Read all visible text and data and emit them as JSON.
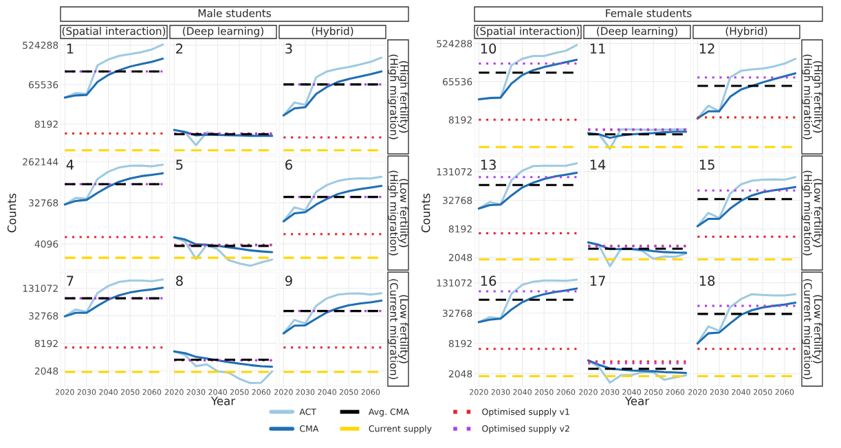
{
  "chart_data": [
    {
      "type": "line",
      "subtitle": "(Spatial interaction)",
      "legend": "bottom",
      "annotations": [
        "1"
      ],
      "x": [
        2020,
        2025,
        2030,
        2035,
        2040,
        2045,
        2050,
        2055,
        2060,
        2065
      ],
      "xlim": [
        2018,
        2067
      ],
      "xticks": [
        2020,
        2030,
        2040,
        2050,
        2060
      ],
      "log": "y",
      "ylim": [
        1700,
        690000
      ],
      "yticks": [
        8192,
        65536,
        524288
      ],
      "grid": true,
      "tick_labels": "y",
      "series": [
        {
          "name": "ACT",
          "color": "#9ecae1",
          "values": [
            33000,
            42000,
            40000,
            180000,
            246000,
            297000,
            325000,
            360000,
            417000,
            538000
          ]
        },
        {
          "name": "CMA",
          "color": "#1f6fb4",
          "values": [
            33000,
            37000,
            38000,
            75000,
            109000,
            140000,
            169000,
            192000,
            217000,
            256000
          ]
        }
      ],
      "ref_lines": [
        {
          "axis": "y",
          "value": 131000,
          "label": "Avg. CMA",
          "color": "#000000",
          "line_style": "dashed"
        },
        {
          "axis": "y",
          "value": 2050,
          "label": "Current supply",
          "color": "#ffd700",
          "line_style": "dashed"
        },
        {
          "axis": "y",
          "value": 5000,
          "label": "Optimised supply v1",
          "color": "#e8222a",
          "line_style": "dotted"
        },
        {
          "axis": "y",
          "value": 131000,
          "label": "Optimised supply v2",
          "color": "#b23cf0",
          "line_style": "dotted"
        }
      ]
    },
    {
      "type": "line",
      "title": "Male students",
      "subtitle": "(Deep learning)",
      "annotations": [
        "2"
      ],
      "x": [
        2020,
        2025,
        2030,
        2035,
        2040,
        2045,
        2050,
        2055,
        2060,
        2065
      ],
      "xlim": [
        2018,
        2067
      ],
      "xticks": [
        2020,
        2030,
        2040,
        2050,
        2060
      ],
      "log": "y",
      "ylim": [
        1700,
        690000
      ],
      "yticks": [
        8192,
        65536,
        524288
      ],
      "grid": true,
      "tick_labels": false,
      "series": [
        {
          "color": "#9ecae1",
          "values": [
            6000,
            5300,
            2700,
            5300,
            4700,
            4500,
            4500,
            4500,
            4450,
            4450
          ]
        },
        {
          "color": "#1f6fb4",
          "values": [
            6000,
            5400,
            4500,
            4700,
            4600,
            4550,
            4500,
            4400,
            4400,
            4400
          ]
        }
      ],
      "ref_lines": [
        {
          "axis": "y",
          "value": 4800,
          "color": "#000000",
          "line_style": "dashed"
        },
        {
          "axis": "y",
          "value": 2050,
          "color": "#ffd700",
          "line_style": "dashed"
        },
        {
          "axis": "y",
          "value": 5000,
          "color": "#e8222a",
          "line_style": "dotted"
        },
        {
          "axis": "y",
          "value": 4900,
          "color": "#b23cf0",
          "line_style": "dotted"
        }
      ]
    },
    {
      "type": "line",
      "subtitle": "(Hybrid)",
      "y2label": "(High fertility)\n(High migration)",
      "annotations": [
        "3"
      ],
      "x": [
        2020,
        2025,
        2030,
        2035,
        2040,
        2045,
        2050,
        2055,
        2060,
        2065
      ],
      "xlim": [
        2018,
        2067
      ],
      "xticks": [
        2020,
        2030,
        2040,
        2050,
        2060
      ],
      "log": "y",
      "ylim": [
        1700,
        690000
      ],
      "yticks": [
        8192,
        65536,
        524288
      ],
      "grid": true,
      "tick_labels": false,
      "series": [
        {
          "color": "#9ecae1",
          "values": [
            12900,
            25500,
            22500,
            96000,
            131000,
            149000,
            165000,
            187000,
            217000,
            270000
          ]
        },
        {
          "color": "#1f6fb4",
          "values": [
            12900,
            18700,
            19900,
            40000,
            58000,
            75000,
            88000,
            100000,
            113000,
            131000
          ]
        }
      ],
      "ref_lines": [
        {
          "axis": "y",
          "value": 66000,
          "color": "#000000",
          "line_style": "dashed"
        },
        {
          "axis": "y",
          "value": 2050,
          "color": "#ffd700",
          "line_style": "dashed"
        },
        {
          "axis": "y",
          "value": 4050,
          "color": "#e8222a",
          "line_style": "dotted"
        },
        {
          "axis": "y",
          "value": 66000,
          "color": "#b23cf0",
          "line_style": "dotted"
        }
      ]
    },
    {
      "type": "line",
      "ylabel": "Counts",
      "annotations": [
        "4"
      ],
      "x": [
        2020,
        2025,
        2030,
        2035,
        2040,
        2045,
        2050,
        2055,
        2060,
        2065
      ],
      "xlim": [
        2018,
        2067
      ],
      "xticks": [
        2020,
        2030,
        2040,
        2050,
        2060
      ],
      "log": "y",
      "ylim": [
        1090,
        350000
      ],
      "yticks": [
        4096,
        32768,
        262144
      ],
      "grid": true,
      "tick_labels": "y",
      "series": [
        {
          "color": "#9ecae1",
          "values": [
            30000,
            42000,
            40000,
            109000,
            158000,
            196000,
            213000,
            215000,
            207000,
            225000
          ]
        },
        {
          "color": "#1f6fb4",
          "values": [
            30000,
            36000,
            38000,
            54000,
            74000,
            95000,
            112000,
            126000,
            135000,
            146000
          ]
        }
      ],
      "ref_lines": [
        {
          "axis": "y",
          "value": 84000,
          "color": "#000000",
          "line_style": "dashed"
        },
        {
          "axis": "y",
          "value": 2030,
          "color": "#ffd700",
          "line_style": "dashed"
        },
        {
          "axis": "y",
          "value": 5800,
          "color": "#e8222a",
          "line_style": "dotted"
        },
        {
          "axis": "y",
          "value": 84000,
          "color": "#b23cf0",
          "line_style": "dotted"
        }
      ]
    },
    {
      "type": "line",
      "annotations": [
        "5"
      ],
      "x": [
        2020,
        2025,
        2030,
        2035,
        2040,
        2045,
        2050,
        2055,
        2060,
        2065
      ],
      "xlim": [
        2018,
        2067
      ],
      "xticks": [
        2020,
        2030,
        2040,
        2050,
        2060
      ],
      "log": "y",
      "ylim": [
        1090,
        350000
      ],
      "yticks": [
        4096,
        32768,
        262144
      ],
      "grid": true,
      "tick_labels": false,
      "series": [
        {
          "color": "#9ecae1",
          "values": [
            5700,
            4600,
            1920,
            3900,
            3100,
            1800,
            1520,
            1350,
            1600,
            1850
          ]
        },
        {
          "color": "#1f6fb4",
          "values": [
            5700,
            5100,
            4000,
            3900,
            3700,
            3450,
            3200,
            2950,
            2800,
            2700
          ]
        }
      ],
      "ref_lines": [
        {
          "axis": "y",
          "value": 3700,
          "color": "#000000",
          "line_style": "dashed"
        },
        {
          "axis": "y",
          "value": 2030,
          "color": "#ffd700",
          "line_style": "dashed"
        },
        {
          "axis": "y",
          "value": 3900,
          "color": "#e8222a",
          "line_style": "dotted"
        },
        {
          "axis": "y",
          "value": 3800,
          "color": "#b23cf0",
          "line_style": "dotted"
        }
      ]
    },
    {
      "type": "line",
      "y2label": "(Low fertility)\n(High migration)",
      "annotations": [
        "6"
      ],
      "x": [
        2020,
        2025,
        2030,
        2035,
        2040,
        2045,
        2050,
        2055,
        2060,
        2065
      ],
      "xlim": [
        2018,
        2067
      ],
      "xticks": [
        2020,
        2030,
        2040,
        2050,
        2060
      ],
      "log": "y",
      "ylim": [
        1090,
        350000
      ],
      "yticks": [
        4096,
        32768,
        262144
      ],
      "grid": true,
      "tick_labels": false,
      "series": [
        {
          "color": "#9ecae1",
          "values": [
            12800,
            26000,
            22400,
            57000,
            81000,
            99000,
            109000,
            113000,
            112000,
            122000
          ]
        },
        {
          "color": "#1f6fb4",
          "values": [
            12800,
            19200,
            20400,
            30000,
            40000,
            51000,
            59000,
            65500,
            70700,
            77000
          ]
        }
      ],
      "ref_lines": [
        {
          "axis": "y",
          "value": 44000,
          "color": "#000000",
          "line_style": "dashed"
        },
        {
          "axis": "y",
          "value": 2030,
          "color": "#ffd700",
          "line_style": "dashed"
        },
        {
          "axis": "y",
          "value": 6700,
          "color": "#e8222a",
          "line_style": "dotted"
        },
        {
          "axis": "y",
          "value": 44000,
          "color": "#b23cf0",
          "line_style": "dotted"
        }
      ]
    },
    {
      "type": "line",
      "annotations": [
        "7"
      ],
      "x": [
        2020,
        2025,
        2030,
        2035,
        2040,
        2045,
        2050,
        2055,
        2060,
        2065
      ],
      "xlim": [
        2018,
        2067
      ],
      "xticks": [
        2020,
        2030,
        2040,
        2050,
        2060
      ],
      "log": "y",
      "ylim": [
        950,
        295000
      ],
      "yticks": [
        2048,
        8192,
        32768,
        131072
      ],
      "grid": true,
      "series": [
        {
          "color": "#9ecae1",
          "values": [
            31900,
            45000,
            40000,
            103000,
            147000,
            180000,
            193000,
            193000,
            187000,
            203000
          ]
        },
        {
          "color": "#1f6fb4",
          "values": [
            31900,
            38000,
            38000,
            54000,
            74000,
            92000,
            106000,
            116000,
            123000,
            134000
          ]
        }
      ],
      "ref_lines": [
        {
          "axis": "y",
          "value": 79000,
          "color": "#000000",
          "line_style": "dashed"
        },
        {
          "axis": "y",
          "value": 1950,
          "color": "#ffd700",
          "line_style": "dashed"
        },
        {
          "axis": "y",
          "value": 6650,
          "color": "#e8222a",
          "line_style": "dotted"
        },
        {
          "axis": "y",
          "value": 79000,
          "color": "#b23cf0",
          "line_style": "dotted"
        }
      ]
    },
    {
      "type": "line",
      "xlabel": "Year",
      "annotations": [
        "8"
      ],
      "x": [
        2020,
        2025,
        2030,
        2035,
        2040,
        2045,
        2050,
        2055,
        2060,
        2065
      ],
      "xlim": [
        2018,
        2067
      ],
      "xticks": [
        2020,
        2030,
        2040,
        2050,
        2060
      ],
      "log": "y",
      "ylim": [
        950,
        295000
      ],
      "yticks": [
        2048,
        8192,
        32768,
        131072
      ],
      "grid": true,
      "tick_labels": "x",
      "series": [
        {
          "color": "#9ecae1",
          "values": [
            5450,
            4550,
            2600,
            2850,
            2000,
            1880,
            1370,
            1110,
            1130,
            2000
          ]
        },
        {
          "color": "#1f6fb4",
          "values": [
            5450,
            5000,
            4150,
            3820,
            3480,
            3200,
            2940,
            2740,
            2590,
            2520
          ]
        }
      ],
      "ref_lines": [
        {
          "axis": "y",
          "value": 3600,
          "color": "#000000",
          "line_style": "dashed"
        },
        {
          "axis": "y",
          "value": 1950,
          "color": "#ffd700",
          "line_style": "dashed"
        },
        {
          "axis": "y",
          "value": 3480,
          "color": "#e8222a",
          "line_style": "dotted"
        },
        {
          "axis": "y",
          "value": 3500,
          "color": "#b23cf0",
          "line_style": "dotted"
        }
      ]
    },
    {
      "type": "line",
      "y2label": "(Low fertility)\n(Current migration)",
      "annotations": [
        "9"
      ],
      "x": [
        2020,
        2025,
        2030,
        2035,
        2040,
        2045,
        2050,
        2055,
        2060,
        2065
      ],
      "xlim": [
        2018,
        2067
      ],
      "xticks": [
        2020,
        2030,
        2040,
        2050,
        2060
      ],
      "log": "y",
      "ylim": [
        950,
        295000
      ],
      "yticks": [
        2048,
        8192,
        32768,
        131072
      ],
      "grid": true,
      "tick_labels": "x",
      "series": [
        {
          "color": "#9ecae1",
          "values": [
            13500,
            26600,
            22300,
            54000,
            79000,
            95000,
            100000,
            101000,
            95000,
            102000
          ]
        },
        {
          "color": "#1f6fb4",
          "values": [
            13500,
            19900,
            20300,
            28300,
            39000,
            48000,
            55500,
            60700,
            64600,
            70000
          ]
        }
      ],
      "ref_lines": [
        {
          "axis": "y",
          "value": 41700,
          "color": "#000000",
          "line_style": "dashed"
        },
        {
          "axis": "y",
          "value": 1950,
          "color": "#ffd700",
          "line_style": "dashed"
        },
        {
          "axis": "y",
          "value": 6650,
          "color": "#e8222a",
          "line_style": "dotted"
        },
        {
          "axis": "y",
          "value": 41700,
          "color": "#b23cf0",
          "line_style": "dotted"
        }
      ]
    },
    {
      "type": "line",
      "subtitle": "(Spatial interaction)",
      "annotations": [
        "10"
      ],
      "x": [
        2020,
        2025,
        2030,
        2035,
        2040,
        2045,
        2050,
        2055,
        2060,
        2065
      ],
      "xlim": [
        2018,
        2067
      ],
      "xticks": [
        2020,
        2030,
        2040,
        2050,
        2060
      ],
      "log": "y",
      "ylim": [
        1270,
        640000
      ],
      "yticks": [
        8192,
        65536,
        524288
      ],
      "grid": true,
      "tick_labels": "y",
      "series": [
        {
          "color": "#9ecae1",
          "values": [
            25000,
            26800,
            26800,
            160000,
            228000,
            265000,
            265000,
            310000,
            353000,
            480000
          ]
        },
        {
          "color": "#1f6fb4",
          "values": [
            25000,
            26800,
            27500,
            59000,
            94000,
            122000,
            145000,
            166000,
            189000,
            216000
          ]
        }
      ],
      "ref_lines": [
        {
          "axis": "y",
          "value": 107000,
          "color": "#000000",
          "line_style": "dashed"
        },
        {
          "axis": "y",
          "value": 1850,
          "color": "#ffd700",
          "line_style": "dashed"
        },
        {
          "axis": "y",
          "value": 8200,
          "color": "#e8222a",
          "line_style": "dotted"
        },
        {
          "axis": "y",
          "value": 175000,
          "color": "#b23cf0",
          "line_style": "dotted"
        }
      ]
    },
    {
      "type": "line",
      "title": "Female students",
      "subtitle": "(Deep learning)",
      "annotations": [
        "11"
      ],
      "x": [
        2020,
        2025,
        2030,
        2035,
        2040,
        2045,
        2050,
        2055,
        2060,
        2065
      ],
      "xlim": [
        2018,
        2067
      ],
      "xticks": [
        2020,
        2030,
        2040,
        2050,
        2060
      ],
      "log": "y",
      "ylim": [
        1270,
        640000
      ],
      "yticks": [
        8192,
        65536,
        524288
      ],
      "grid": true,
      "tick_labels": false,
      "series": [
        {
          "color": "#9ecae1",
          "values": [
            3950,
            3700,
            1680,
            4850,
            4850,
            4750,
            4700,
            4750,
            4850,
            4850
          ]
        },
        {
          "color": "#1f6fb4",
          "values": [
            3950,
            3700,
            3050,
            3470,
            3700,
            3850,
            3950,
            4120,
            4240,
            4240
          ]
        }
      ],
      "ref_lines": [
        {
          "axis": "y",
          "value": 3700,
          "color": "#000000",
          "line_style": "dashed"
        },
        {
          "axis": "y",
          "value": 1850,
          "color": "#ffd700",
          "line_style": "dashed"
        },
        {
          "axis": "y",
          "value": 4700,
          "color": "#e8222a",
          "line_style": "dotted"
        },
        {
          "axis": "y",
          "value": 4850,
          "color": "#b23cf0",
          "line_style": "dotted"
        }
      ]
    },
    {
      "type": "line",
      "subtitle": "(Hybrid)",
      "y2label": "(High fertility)\n(High migration)",
      "annotations": [
        "12"
      ],
      "x": [
        2020,
        2025,
        2030,
        2035,
        2040,
        2045,
        2050,
        2055,
        2060,
        2065
      ],
      "xlim": [
        2018,
        2067
      ],
      "xticks": [
        2020,
        2030,
        2040,
        2050,
        2060
      ],
      "log": "y",
      "ylim": [
        1270,
        640000
      ],
      "yticks": [
        8192,
        65536,
        524288
      ],
      "grid": true,
      "tick_labels": false,
      "series": [
        {
          "color": "#9ecae1",
          "values": [
            8800,
            17600,
            13000,
            82000,
            118000,
            128000,
            134000,
            150000,
            175000,
            228000
          ]
        },
        {
          "color": "#1f6fb4",
          "values": [
            8800,
            13000,
            13000,
            28700,
            42700,
            52000,
            63000,
            75000,
            88000,
            103000
          ]
        }
      ],
      "ref_lines": [
        {
          "axis": "y",
          "value": 52000,
          "color": "#000000",
          "line_style": "dashed"
        },
        {
          "axis": "y",
          "value": 1850,
          "color": "#ffd700",
          "line_style": "dashed"
        },
        {
          "axis": "y",
          "value": 9300,
          "color": "#e8222a",
          "line_style": "dotted"
        },
        {
          "axis": "y",
          "value": 82000,
          "color": "#b23cf0",
          "line_style": "dotted"
        }
      ]
    },
    {
      "type": "line",
      "ylabel": "Counts",
      "annotations": [
        "13"
      ],
      "x": [
        2020,
        2025,
        2030,
        2035,
        2040,
        2045,
        2050,
        2055,
        2060,
        2065
      ],
      "xlim": [
        2018,
        2067
      ],
      "xticks": [
        2020,
        2030,
        2040,
        2050,
        2060
      ],
      "log": "y",
      "ylim": [
        1110,
        281000
      ],
      "yticks": [
        2048,
        8192,
        32768,
        131072
      ],
      "grid": true,
      "tick_labels": "y",
      "series": [
        {
          "color": "#9ecae1",
          "values": [
            21900,
            30000,
            26600,
            87000,
            138000,
            172000,
            175000,
            175000,
            175000,
            197000
          ]
        },
        {
          "color": "#1f6fb4",
          "values": [
            21900,
            25900,
            26600,
            41400,
            61000,
            77000,
            92000,
            104000,
            113000,
            124000
          ]
        }
      ],
      "ref_lines": [
        {
          "axis": "y",
          "value": 68700,
          "color": "#000000",
          "line_style": "dashed"
        },
        {
          "axis": "y",
          "value": 1860,
          "color": "#ffd700",
          "line_style": "dashed"
        },
        {
          "axis": "y",
          "value": 6600,
          "color": "#e8222a",
          "line_style": "dotted"
        },
        {
          "axis": "y",
          "value": 101000,
          "color": "#b23cf0",
          "line_style": "dotted"
        }
      ]
    },
    {
      "type": "line",
      "annotations": [
        "14"
      ],
      "x": [
        2020,
        2025,
        2030,
        2035,
        2040,
        2045,
        2050,
        2055,
        2060,
        2065
      ],
      "xlim": [
        2018,
        2067
      ],
      "xticks": [
        2020,
        2030,
        2040,
        2050,
        2060
      ],
      "log": "y",
      "ylim": [
        1110,
        281000
      ],
      "yticks": [
        2048,
        8192,
        32768,
        131072
      ],
      "grid": true,
      "tick_labels": false,
      "series": [
        {
          "color": "#9ecae1",
          "values": [
            4240,
            3640,
            1340,
            3060,
            3060,
            2780,
            1910,
            2150,
            2100,
            2470
          ]
        },
        {
          "color": "#1f6fb4",
          "values": [
            4240,
            3770,
            3060,
            3060,
            3060,
            2980,
            2780,
            2650,
            2590,
            2570
          ]
        }
      ],
      "ref_lines": [
        {
          "axis": "y",
          "value": 3120,
          "color": "#000000",
          "line_style": "dashed"
        },
        {
          "axis": "y",
          "value": 1860,
          "color": "#ffd700",
          "line_style": "dashed"
        },
        {
          "axis": "y",
          "value": 3600,
          "color": "#e8222a",
          "line_style": "dotted"
        },
        {
          "axis": "y",
          "value": 3500,
          "color": "#b23cf0",
          "line_style": "dotted"
        }
      ]
    },
    {
      "type": "line",
      "y2label": "(Low fertility)\n(High migration)",
      "annotations": [
        "15"
      ],
      "x": [
        2020,
        2025,
        2030,
        2035,
        2040,
        2045,
        2050,
        2055,
        2060,
        2065
      ],
      "xlim": [
        2018,
        2067
      ],
      "xticks": [
        2020,
        2030,
        2040,
        2050,
        2060
      ],
      "log": "y",
      "ylim": [
        1110,
        281000
      ],
      "yticks": [
        2048,
        8192,
        32768,
        131072
      ],
      "grid": true,
      "tick_labels": false,
      "series": [
        {
          "color": "#9ecae1",
          "values": [
            9300,
            17800,
            13800,
            45000,
            71000,
            84500,
            89000,
            90000,
            89000,
            101000
          ]
        },
        {
          "color": "#1f6fb4",
          "values": [
            9300,
            13300,
            13300,
            21900,
            32000,
            41400,
            48300,
            52900,
            57400,
            62400
          ]
        }
      ],
      "ref_lines": [
        {
          "axis": "y",
          "value": 34600,
          "color": "#000000",
          "line_style": "dashed"
        },
        {
          "axis": "y",
          "value": 1860,
          "color": "#ffd700",
          "line_style": "dashed"
        },
        {
          "axis": "y",
          "value": 5600,
          "color": "#e8222a",
          "line_style": "dotted"
        },
        {
          "axis": "y",
          "value": 52500,
          "color": "#b23cf0",
          "line_style": "dotted"
        }
      ]
    },
    {
      "type": "line",
      "annotations": [
        "16"
      ],
      "x": [
        2020,
        2025,
        2030,
        2035,
        2040,
        2045,
        2050,
        2055,
        2060,
        2065
      ],
      "xlim": [
        2018,
        2067
      ],
      "xticks": [
        2020,
        2030,
        2040,
        2050,
        2060
      ],
      "log": "y",
      "ylim": [
        1160,
        214000
      ],
      "yticks": [
        2048,
        8192,
        32768,
        131072
      ],
      "grid": true,
      "series": [
        {
          "color": "#9ecae1",
          "values": [
            21700,
            27200,
            25700,
            79500,
            120000,
            138000,
            146000,
            146000,
            143000,
            151000
          ]
        },
        {
          "color": "#1f6fb4",
          "values": [
            21700,
            24300,
            25400,
            38700,
            54000,
            67300,
            77900,
            85900,
            92000,
            101000
          ]
        }
      ],
      "ref_lines": [
        {
          "axis": "y",
          "value": 60300,
          "color": "#000000",
          "line_style": "dashed"
        },
        {
          "axis": "y",
          "value": 1830,
          "color": "#ffd700",
          "line_style": "dashed"
        },
        {
          "axis": "y",
          "value": 6400,
          "color": "#e8222a",
          "line_style": "dotted"
        },
        {
          "axis": "y",
          "value": 88800,
          "color": "#b23cf0",
          "line_style": "dotted"
        }
      ]
    },
    {
      "type": "line",
      "xlabel": "Year",
      "annotations": [
        "17"
      ],
      "x": [
        2020,
        2025,
        2030,
        2035,
        2040,
        2045,
        2050,
        2055,
        2060,
        2065
      ],
      "xlim": [
        2018,
        2067
      ],
      "xticks": [
        2020,
        2030,
        2040,
        2050,
        2060
      ],
      "log": "y",
      "ylim": [
        1160,
        214000
      ],
      "yticks": [
        2048,
        8192,
        32768,
        131072
      ],
      "grid": true,
      "tick_labels": "x",
      "series": [
        {
          "color": "#9ecae1",
          "values": [
            3770,
            2760,
            1360,
            1900,
            1930,
            2210,
            2170,
            1550,
            1730,
            1900
          ]
        },
        {
          "color": "#1f6fb4",
          "values": [
            3770,
            3080,
            2610,
            2470,
            2370,
            2340,
            2290,
            2210,
            2170,
            2120
          ]
        }
      ],
      "ref_lines": [
        {
          "axis": "y",
          "value": 2560,
          "color": "#000000",
          "line_style": "dashed"
        },
        {
          "axis": "y",
          "value": 1830,
          "color": "#ffd700",
          "line_style": "dashed"
        },
        {
          "axis": "y",
          "value": 3600,
          "color": "#e8222a",
          "line_style": "dotted"
        },
        {
          "axis": "y",
          "value": 3300,
          "color": "#b23cf0",
          "line_style": "dotted"
        }
      ]
    },
    {
      "type": "line",
      "y2label": "(Low fertility)\n(Current migration)",
      "annotations": [
        "18"
      ],
      "x": [
        2020,
        2025,
        2030,
        2035,
        2040,
        2045,
        2050,
        2055,
        2060,
        2065
      ],
      "xlim": [
        2018,
        2067
      ],
      "xticks": [
        2020,
        2030,
        2040,
        2050,
        2060
      ],
      "log": "y",
      "ylim": [
        1160,
        214000
      ],
      "yticks": [
        2048,
        8192,
        32768,
        131072
      ],
      "grid": true,
      "tick_labels": "x",
      "series": [
        {
          "color": "#9ecae1",
          "values": [
            8190,
            17800,
            14600,
            43200,
            62400,
            77900,
            75300,
            73700,
            73700,
            77900
          ]
        },
        {
          "color": "#1f6fb4",
          "values": [
            8190,
            13000,
            13500,
            20500,
            30300,
            37400,
            42300,
            45700,
            48300,
            52800
          ]
        }
      ],
      "ref_lines": [
        {
          "axis": "y",
          "value": 31600,
          "color": "#000000",
          "line_style": "dashed"
        },
        {
          "axis": "y",
          "value": 1830,
          "color": "#ffd700",
          "line_style": "dashed"
        },
        {
          "axis": "y",
          "value": 6400,
          "color": "#e8222a",
          "line_style": "dotted"
        },
        {
          "axis": "y",
          "value": 45700,
          "color": "#b23cf0",
          "line_style": "dotted"
        }
      ]
    }
  ]
}
